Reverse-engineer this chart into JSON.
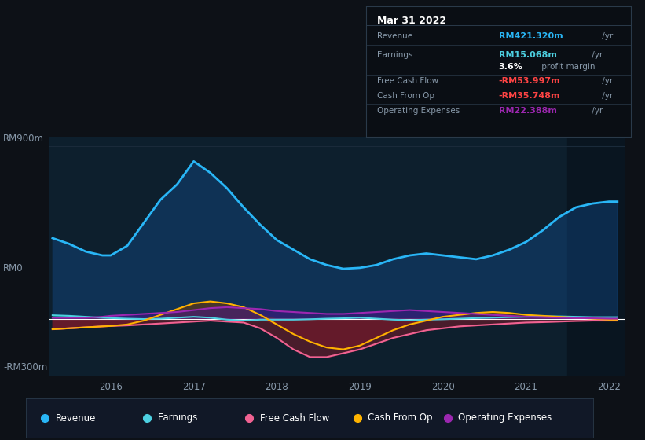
{
  "bg_color": "#0d1117",
  "plot_bg": "#0d1f2d",
  "right_panel_bg": "#0a1520",
  "ylabel_top": "RM900m",
  "ylabel_zero": "RM0",
  "ylabel_bot": "-RM300m",
  "x_labels": [
    "2016",
    "2017",
    "2018",
    "2019",
    "2020",
    "2021",
    "2022"
  ],
  "legend_items": [
    "Revenue",
    "Earnings",
    "Free Cash Flow",
    "Cash From Op",
    "Operating Expenses"
  ],
  "legend_colors": [
    "#29b6f6",
    "#4dd0e1",
    "#f06292",
    "#ffb300",
    "#9c27b0"
  ],
  "info_box": {
    "date": "Mar 31 2022",
    "rows": [
      {
        "label": "Revenue",
        "value": "RM421.320m",
        "value_color": "#29b6f6",
        "suffix": " /yr"
      },
      {
        "label": "Earnings",
        "value": "RM15.068m",
        "value_color": "#4dd0e1",
        "suffix": " /yr"
      },
      {
        "label": "",
        "value": "3.6%",
        "value_color": "#ffffff",
        "bold": true,
        "suffix": " profit margin"
      },
      {
        "label": "Free Cash Flow",
        "value": "-RM53.997m",
        "value_color": "#ff4444",
        "suffix": " /yr"
      },
      {
        "label": "Cash From Op",
        "value": "-RM35.748m",
        "value_color": "#ff4444",
        "suffix": " /yr"
      },
      {
        "label": "Operating Expenses",
        "value": "RM22.388m",
        "value_color": "#9c27b0",
        "suffix": " /yr"
      }
    ]
  },
  "x": [
    2015.3,
    2015.5,
    2015.7,
    2015.9,
    2016.0,
    2016.2,
    2016.4,
    2016.6,
    2016.8,
    2017.0,
    2017.2,
    2017.4,
    2017.6,
    2017.8,
    2018.0,
    2018.2,
    2018.4,
    2018.6,
    2018.8,
    2019.0,
    2019.2,
    2019.4,
    2019.6,
    2019.8,
    2020.0,
    2020.2,
    2020.4,
    2020.6,
    2020.8,
    2021.0,
    2021.2,
    2021.4,
    2021.6,
    2021.8,
    2022.0,
    2022.1
  ],
  "revenue": [
    420,
    390,
    350,
    330,
    330,
    380,
    500,
    620,
    700,
    820,
    760,
    680,
    580,
    490,
    410,
    360,
    310,
    280,
    260,
    265,
    280,
    310,
    330,
    340,
    330,
    320,
    310,
    330,
    360,
    400,
    460,
    530,
    580,
    600,
    610,
    610
  ],
  "earnings": [
    18,
    15,
    10,
    5,
    3,
    0,
    -2,
    0,
    5,
    10,
    5,
    -5,
    -10,
    -5,
    -5,
    -5,
    -3,
    0,
    2,
    5,
    0,
    -5,
    -8,
    -5,
    -3,
    0,
    3,
    5,
    8,
    10,
    12,
    12,
    10,
    8,
    8,
    8
  ],
  "free_cash_flow": [
    -55,
    -50,
    -45,
    -40,
    -38,
    -35,
    -30,
    -25,
    -20,
    -15,
    -10,
    -15,
    -20,
    -50,
    -100,
    -160,
    -200,
    -200,
    -180,
    -160,
    -130,
    -100,
    -80,
    -60,
    -50,
    -40,
    -35,
    -30,
    -25,
    -20,
    -18,
    -15,
    -12,
    -10,
    -10,
    -10
  ],
  "cash_from_op": [
    -55,
    -50,
    -45,
    -40,
    -38,
    -30,
    -10,
    20,
    50,
    80,
    90,
    80,
    60,
    20,
    -30,
    -80,
    -120,
    -150,
    -160,
    -140,
    -100,
    -60,
    -30,
    -10,
    10,
    20,
    30,
    35,
    30,
    20,
    15,
    10,
    5,
    0,
    -5,
    -5
  ],
  "operating_expenses": [
    5,
    5,
    5,
    10,
    15,
    20,
    25,
    30,
    35,
    45,
    55,
    60,
    55,
    50,
    40,
    35,
    30,
    25,
    25,
    30,
    35,
    40,
    45,
    40,
    35,
    30,
    25,
    20,
    15,
    10,
    8,
    5,
    3,
    2,
    0,
    0
  ]
}
